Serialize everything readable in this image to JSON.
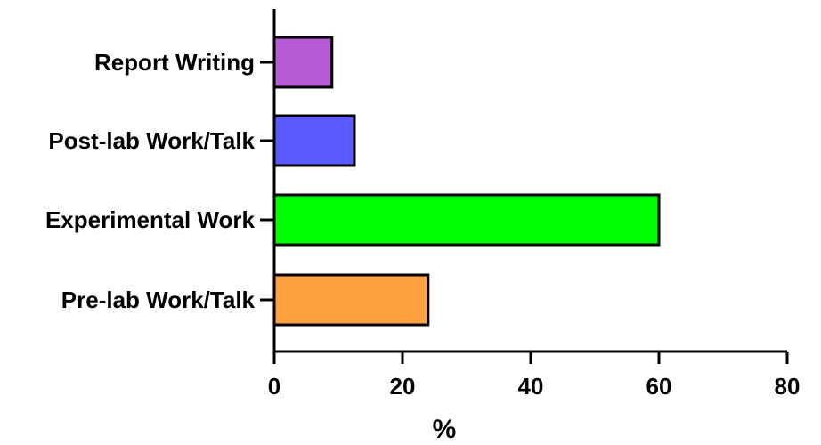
{
  "chart_data": {
    "type": "bar",
    "orientation": "horizontal",
    "categories": [
      "Report Writing",
      "Post-lab Work/Talk",
      "Experimental Work",
      "Pre-lab Work/Talk"
    ],
    "values": [
      9,
      12.5,
      60,
      24
    ],
    "colors": [
      "#b95ad6",
      "#5a5aff",
      "#00ff00",
      "#ffa040"
    ],
    "xlabel": "%",
    "ylabel": "",
    "title": "",
    "xlim": [
      0,
      80
    ],
    "xticks": [
      0,
      20,
      40,
      60,
      80
    ],
    "grid": false,
    "legend": "none"
  }
}
